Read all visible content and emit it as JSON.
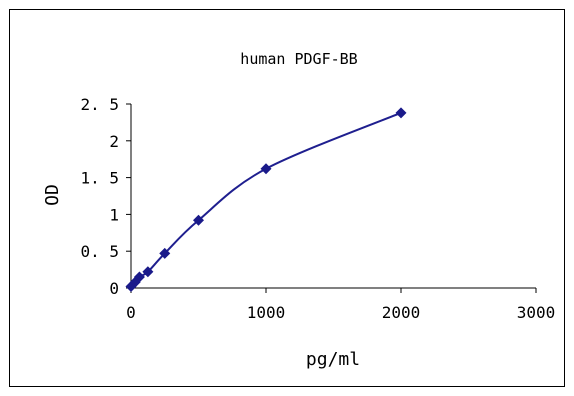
{
  "chart_data": {
    "type": "scatter",
    "title": "human PDGF-BB",
    "xlabel": "pg/ml",
    "ylabel": "OD",
    "xlim": [
      0,
      3000
    ],
    "ylim": [
      0,
      2.5
    ],
    "xticks": [
      "0",
      "1000",
      "2000",
      "3000"
    ],
    "yticks": [
      "0",
      "0. 5",
      "1",
      "1. 5",
      "2",
      "2. 5"
    ],
    "xtick_values": [
      0,
      1000,
      2000,
      3000
    ],
    "ytick_values": [
      0,
      0.5,
      1,
      1.5,
      2,
      2.5
    ],
    "grid": false,
    "legend": "none",
    "series": [
      {
        "x": [
          0,
          31.25,
          62.5,
          125,
          250,
          500,
          1000,
          2000
        ],
        "y": [
          0.02,
          0.08,
          0.15,
          0.22,
          0.47,
          0.92,
          1.62,
          2.38
        ],
        "marker": "diamond",
        "line": "smooth",
        "color": "#1a1a8a"
      }
    ]
  }
}
